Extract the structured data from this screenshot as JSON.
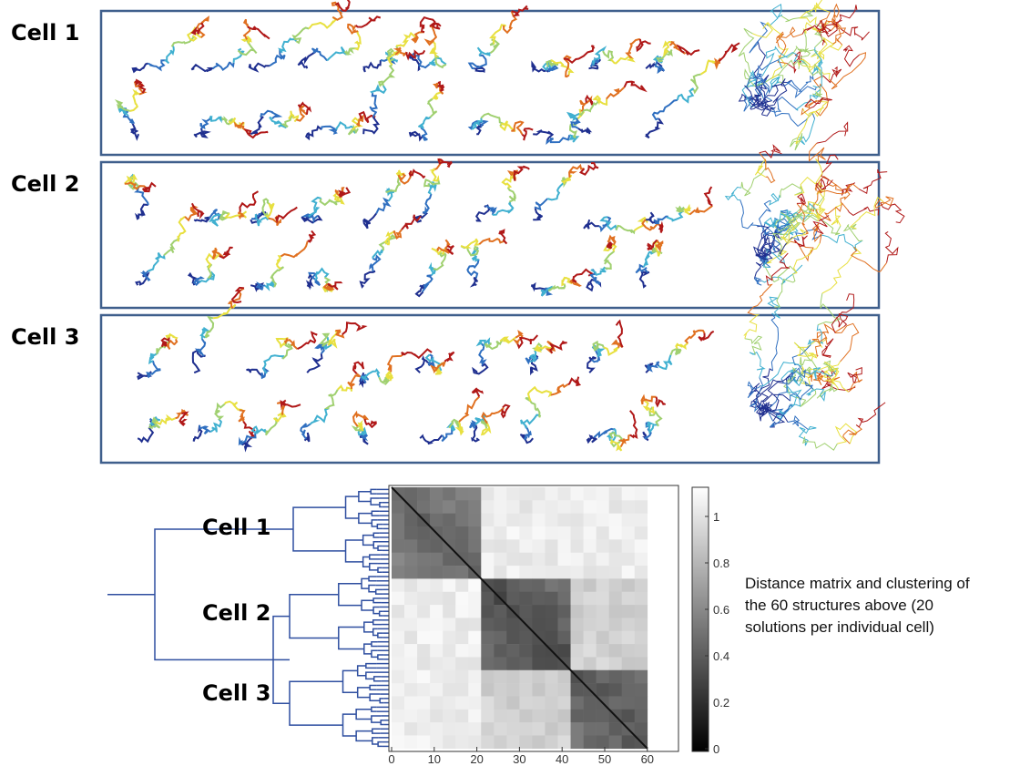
{
  "panels": [
    {
      "label": "Cell 1"
    },
    {
      "label": "Cell 2"
    },
    {
      "label": "Cell 3"
    }
  ],
  "heatmap": {
    "cluster_labels": [
      "Cell 1",
      "Cell 2",
      "Cell 3"
    ],
    "xticks": [
      0,
      10,
      20,
      30,
      40,
      50,
      60
    ],
    "colorbar_ticks": [
      0,
      0.2,
      0.4,
      0.6,
      0.8,
      1
    ]
  },
  "caption_lines": [
    "Distance matrix and clustering of",
    "the 60 structures above (20",
    "solutions per individual cell)"
  ]
}
